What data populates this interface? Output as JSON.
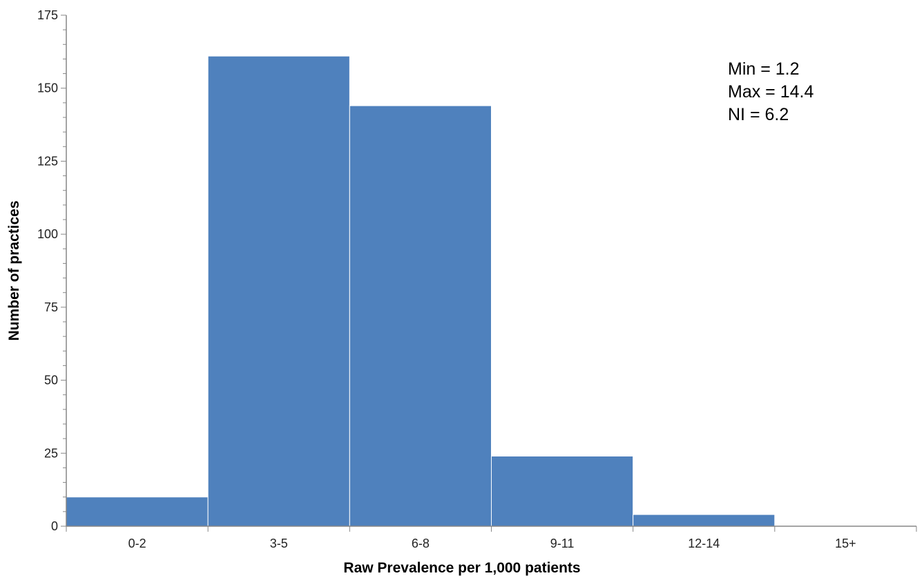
{
  "chart_data": {
    "type": "bar",
    "categories": [
      "0-2",
      "3-5",
      "6-8",
      "9-11",
      "12-14",
      "15+"
    ],
    "values": [
      10,
      161,
      144,
      24,
      4,
      0
    ],
    "xlabel": "Raw Prevalence per 1,000 patients",
    "ylabel": "Number of practices",
    "ylim": [
      0,
      175
    ],
    "yticks": [
      "0",
      "25",
      "50",
      "75",
      "100",
      "125",
      "150",
      "175"
    ],
    "grid": false,
    "bar_color": "#4f81bd",
    "annotations": [
      "Min = 1.2",
      "Max = 14.4",
      "NI = 6.2"
    ]
  }
}
